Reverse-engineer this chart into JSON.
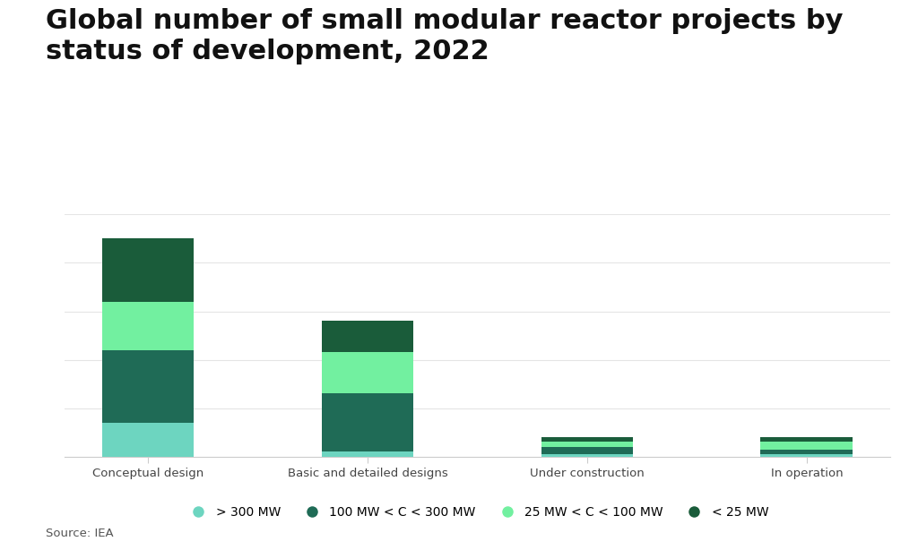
{
  "categories": [
    "Conceptual design",
    "Basic and detailed designs",
    "Under construction",
    "In operation"
  ],
  "series": [
    {
      "label": "> 300 MW",
      "color": "#6DD5C0",
      "values": [
        14,
        2,
        1,
        1
      ]
    },
    {
      "label": "100 MW < C < 300 MW",
      "color": "#1F6B56",
      "values": [
        30,
        24,
        3,
        2
      ]
    },
    {
      "label": "25 MW < C < 100 MW",
      "color": "#72F0A0",
      "values": [
        20,
        17,
        2,
        3
      ]
    },
    {
      "label": "< 25 MW",
      "color": "#1A5C3A",
      "values": [
        26,
        13,
        2,
        2
      ]
    }
  ],
  "title_line1": "Global number of small modular reactor projects by",
  "title_line2": "status of development, 2022",
  "source": "Source: IEA",
  "ylim": [
    0,
    100
  ],
  "yticks": [
    20,
    40,
    60,
    80,
    100
  ],
  "background_color": "#ffffff",
  "title_fontsize": 22,
  "tick_fontsize": 9.5,
  "legend_fontsize": 10,
  "source_fontsize": 9.5,
  "bar_width": 0.42,
  "grid_color": "#e5e5e5",
  "axis_color": "#cccccc",
  "text_color": "#111111",
  "source_color": "#555555"
}
